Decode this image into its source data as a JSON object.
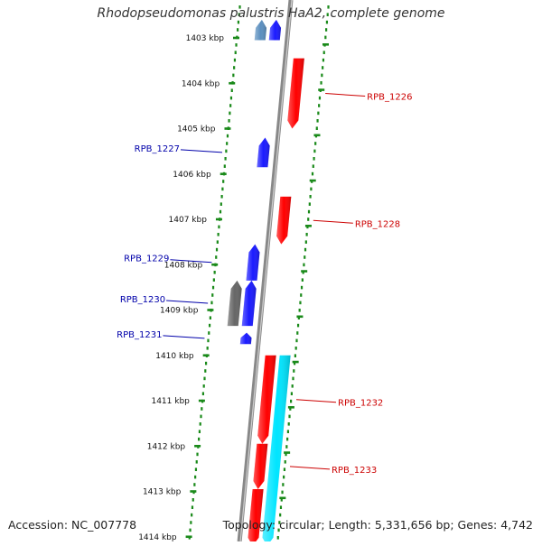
{
  "title": "Rhodopseudomonas palustris HaA2, complete genome",
  "footer": {
    "accession": "Accession: NC_007778",
    "summary": "Topology: circular; Length: 5,331,656 bp; Genes: 4,742"
  },
  "scale": {
    "unit": "kbp",
    "ticks": [
      "1403 kbp",
      "1404 kbp",
      "1405 kbp",
      "1406 kbp",
      "1407 kbp",
      "1408 kbp",
      "1409 kbp",
      "1410 kbp",
      "1411 kbp",
      "1412 kbp",
      "1413 kbp",
      "1414 kbp"
    ]
  },
  "genes": [
    {
      "id": "top-steelblue",
      "label": "",
      "strand": "minus",
      "color": "#5b8fbf",
      "start_kbp": 1402.6,
      "end_kbp": 1403.05,
      "lane": "outer"
    },
    {
      "id": "top-blue",
      "label": "",
      "strand": "minus",
      "color": "#1a1aff",
      "start_kbp": 1402.6,
      "end_kbp": 1403.05,
      "lane": "inner"
    },
    {
      "id": "RPB_1226",
      "label": "RPB_1226",
      "strand": "plus",
      "color": "#ff0000",
      "start_kbp": 1403.45,
      "end_kbp": 1405.0
    },
    {
      "id": "RPB_1227",
      "label": "RPB_1227",
      "strand": "minus",
      "color": "#1a1aff",
      "start_kbp": 1405.2,
      "end_kbp": 1405.85
    },
    {
      "id": "RPB_1228",
      "label": "RPB_1228",
      "strand": "plus",
      "color": "#ff0000",
      "start_kbp": 1406.5,
      "end_kbp": 1407.55
    },
    {
      "id": "RPB_1229",
      "label": "RPB_1229",
      "strand": "minus",
      "color": "#1a1aff",
      "start_kbp": 1407.55,
      "end_kbp": 1408.35
    },
    {
      "id": "RPB_1230",
      "label": "RPB_1230",
      "strand": "minus",
      "color": "#1a1aff",
      "start_kbp": 1408.35,
      "end_kbp": 1409.35
    },
    {
      "id": "pseudo-gray",
      "label": "",
      "strand": "minus",
      "color": "#666666",
      "start_kbp": 1408.35,
      "end_kbp": 1409.35,
      "lane": "outer"
    },
    {
      "id": "RPB_1231",
      "label": "RPB_1231",
      "strand": "minus",
      "color": "#1a1aff",
      "start_kbp": 1409.5,
      "end_kbp": 1409.75
    },
    {
      "id": "RPB_1232",
      "label": "RPB_1232",
      "strand": "plus",
      "color": "#ff0000",
      "start_kbp": 1410.0,
      "end_kbp": 1411.95
    },
    {
      "id": "RPB_1233",
      "label": "RPB_1233",
      "strand": "plus",
      "color": "#ff0000",
      "start_kbp": 1411.95,
      "end_kbp": 1412.95
    },
    {
      "id": "cyan-cds",
      "label": "",
      "strand": "plus",
      "color": "#00e5ff",
      "start_kbp": 1410.0,
      "end_kbp": 1414.2,
      "lane": "outer"
    },
    {
      "id": "bottom-red",
      "label": "",
      "strand": "plus",
      "color": "#ff0000",
      "start_kbp": 1412.95,
      "end_kbp": 1414.2
    }
  ]
}
